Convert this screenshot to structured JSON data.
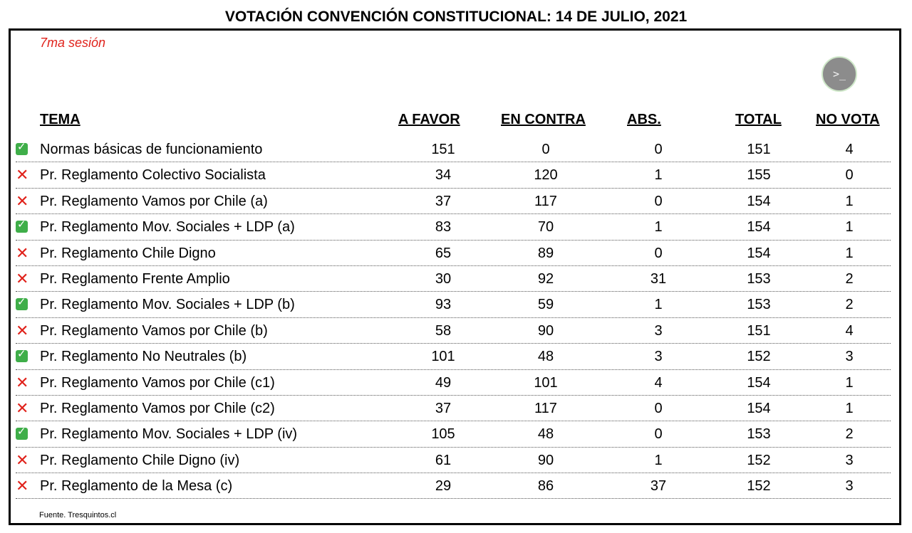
{
  "title": "VOTACIÓN CONVENCIÓN CONSTITUCIONAL: 14 DE JULIO, 2021",
  "subtitle": "7ma sesión",
  "terminal_button": {
    "icon": "terminal-icon",
    "label": ">_"
  },
  "headers": {
    "tema": "TEMA",
    "a_favor": "A FAVOR",
    "en_contra": "EN CONTRA",
    "abs": "ABS.",
    "total": "TOTAL",
    "no_vota": "NO VOTA"
  },
  "rows": [
    {
      "status": "approved",
      "icon": "check-icon",
      "tema": "Normas básicas de funcionamiento",
      "a_favor": "151",
      "en_contra": "0",
      "abs": "0",
      "total": "151",
      "no_vota": "4"
    },
    {
      "status": "rejected",
      "icon": "cross-icon",
      "tema": "Pr. Reglamento Colectivo Socialista",
      "a_favor": "34",
      "en_contra": "120",
      "abs": "1",
      "total": "155",
      "no_vota": "0"
    },
    {
      "status": "rejected",
      "icon": "cross-icon",
      "tema": "Pr. Reglamento Vamos por Chile (a)",
      "a_favor": "37",
      "en_contra": "117",
      "abs": "0",
      "total": "154",
      "no_vota": "1"
    },
    {
      "status": "approved",
      "icon": "check-icon",
      "tema": "Pr. Reglamento Mov. Sociales + LDP (a)",
      "a_favor": "83",
      "en_contra": "70",
      "abs": "1",
      "total": "154",
      "no_vota": "1"
    },
    {
      "status": "rejected",
      "icon": "cross-icon",
      "tema": "Pr. Reglamento Chile Digno",
      "a_favor": "65",
      "en_contra": "89",
      "abs": "0",
      "total": "154",
      "no_vota": "1"
    },
    {
      "status": "rejected",
      "icon": "cross-icon",
      "tema": "Pr. Reglamento Frente Amplio",
      "a_favor": "30",
      "en_contra": "92",
      "abs": "31",
      "total": "153",
      "no_vota": "2"
    },
    {
      "status": "approved",
      "icon": "check-icon",
      "tema": "Pr. Reglamento Mov. Sociales + LDP (b)",
      "a_favor": "93",
      "en_contra": "59",
      "abs": "1",
      "total": "153",
      "no_vota": "2"
    },
    {
      "status": "rejected",
      "icon": "cross-icon",
      "tema": "Pr. Reglamento Vamos por Chile (b)",
      "a_favor": "58",
      "en_contra": "90",
      "abs": "3",
      "total": "151",
      "no_vota": "4"
    },
    {
      "status": "approved",
      "icon": "check-icon",
      "tema": "Pr. Reglamento No Neutrales (b)",
      "a_favor": "101",
      "en_contra": "48",
      "abs": "3",
      "total": "152",
      "no_vota": "3"
    },
    {
      "status": "rejected",
      "icon": "cross-icon",
      "tema": "Pr. Reglamento Vamos por Chile (c1)",
      "a_favor": "49",
      "en_contra": "101",
      "abs": "4",
      "total": "154",
      "no_vota": "1"
    },
    {
      "status": "rejected",
      "icon": "cross-icon",
      "tema": "Pr. Reglamento Vamos por Chile (c2)",
      "a_favor": "37",
      "en_contra": "117",
      "abs": "0",
      "total": "154",
      "no_vota": "1"
    },
    {
      "status": "approved",
      "icon": "check-icon",
      "tema": "Pr. Reglamento Mov. Sociales + LDP (iv)",
      "a_favor": "105",
      "en_contra": "48",
      "abs": "0",
      "total": "153",
      "no_vota": "2"
    },
    {
      "status": "rejected",
      "icon": "cross-icon",
      "tema": "Pr. Reglamento Chile Digno (iv)",
      "a_favor": "61",
      "en_contra": "90",
      "abs": "1",
      "total": "152",
      "no_vota": "3"
    },
    {
      "status": "rejected",
      "icon": "cross-icon",
      "tema": "Pr. Reglamento de la Mesa (c)",
      "a_favor": "29",
      "en_contra": "86",
      "abs": "37",
      "total": "152",
      "no_vota": "3"
    }
  ],
  "source": "Fuente. Tresquintos.cl",
  "colors": {
    "approved": "#3fae49",
    "rejected": "#e0221b",
    "subtitle": "#e0221b"
  }
}
